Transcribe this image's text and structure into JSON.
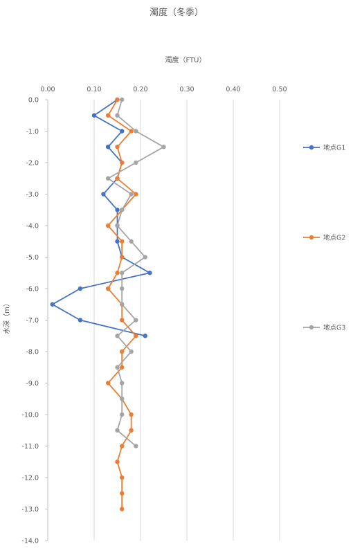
{
  "chart_data": {
    "type": "line",
    "title": "濁度（冬季）",
    "xlabel": "濁度（FTU）",
    "ylabel": "水深（m）",
    "x_axis_position": "top",
    "xlim": [
      0.0,
      0.5
    ],
    "ylim": [
      -14.0,
      0.0
    ],
    "x_ticks": [
      "0.00",
      "0.10",
      "0.20",
      "0.30",
      "0.40",
      "0.50"
    ],
    "y_ticks": [
      "0.0",
      "-1.0",
      "-2.0",
      "-3.0",
      "-4.0",
      "-5.0",
      "-6.0",
      "-7.0",
      "-8.0",
      "-9.0",
      "-10.0",
      "-11.0",
      "-12.0",
      "-13.0",
      "-14.0"
    ],
    "grid": "vertical",
    "legend_position": "right",
    "series": [
      {
        "name": "地点G1",
        "color": "#4472c4",
        "points": [
          [
            0.15,
            0.0
          ],
          [
            0.1,
            -0.5
          ],
          [
            0.16,
            -1.0
          ],
          [
            0.13,
            -1.5
          ],
          [
            0.16,
            -2.0
          ],
          [
            0.15,
            -2.5
          ],
          [
            0.12,
            -3.0
          ],
          [
            0.15,
            -3.5
          ],
          [
            0.15,
            -4.0
          ],
          [
            0.15,
            -4.5
          ],
          [
            0.16,
            -5.0
          ],
          [
            0.22,
            -5.5
          ],
          [
            0.07,
            -6.0
          ],
          [
            0.01,
            -6.5
          ],
          [
            0.07,
            -7.0
          ],
          [
            0.21,
            -7.5
          ]
        ]
      },
      {
        "name": "地点G2",
        "color": "#ed7d31",
        "points": [
          [
            0.15,
            0.0
          ],
          [
            0.13,
            -0.5
          ],
          [
            0.18,
            -1.0
          ],
          [
            0.15,
            -1.5
          ],
          [
            0.16,
            -2.0
          ],
          [
            0.15,
            -2.5
          ],
          [
            0.19,
            -3.0
          ],
          [
            0.16,
            -3.5
          ],
          [
            0.13,
            -4.0
          ],
          [
            0.16,
            -4.5
          ],
          [
            0.16,
            -5.0
          ],
          [
            0.15,
            -5.5
          ],
          [
            0.13,
            -6.0
          ],
          [
            0.16,
            -6.5
          ],
          [
            0.16,
            -7.0
          ],
          [
            0.19,
            -7.5
          ],
          [
            0.16,
            -8.0
          ],
          [
            0.16,
            -8.5
          ],
          [
            0.13,
            -9.0
          ],
          [
            0.16,
            -9.5
          ],
          [
            0.18,
            -10.0
          ],
          [
            0.18,
            -10.5
          ],
          [
            0.16,
            -11.0
          ],
          [
            0.15,
            -11.5
          ],
          [
            0.16,
            -12.0
          ],
          [
            0.16,
            -12.5
          ],
          [
            0.16,
            -13.0
          ]
        ]
      },
      {
        "name": "地点G3",
        "color": "#a5a5a5",
        "points": [
          [
            0.16,
            0.0
          ],
          [
            0.15,
            -0.5
          ],
          [
            0.19,
            -1.0
          ],
          [
            0.25,
            -1.5
          ],
          [
            0.19,
            -2.0
          ],
          [
            0.13,
            -2.5
          ],
          [
            0.18,
            -3.0
          ],
          [
            0.16,
            -3.5
          ],
          [
            0.15,
            -4.0
          ],
          [
            0.18,
            -4.5
          ],
          [
            0.21,
            -5.0
          ],
          [
            0.16,
            -5.5
          ],
          [
            0.16,
            -6.0
          ],
          [
            0.16,
            -6.5
          ],
          [
            0.19,
            -7.0
          ],
          [
            0.15,
            -7.5
          ],
          [
            0.18,
            -8.0
          ],
          [
            0.15,
            -8.5
          ],
          [
            0.16,
            -9.0
          ],
          [
            0.16,
            -9.5
          ],
          [
            0.16,
            -10.0
          ],
          [
            0.15,
            -10.5
          ],
          [
            0.19,
            -11.0
          ]
        ]
      }
    ]
  }
}
